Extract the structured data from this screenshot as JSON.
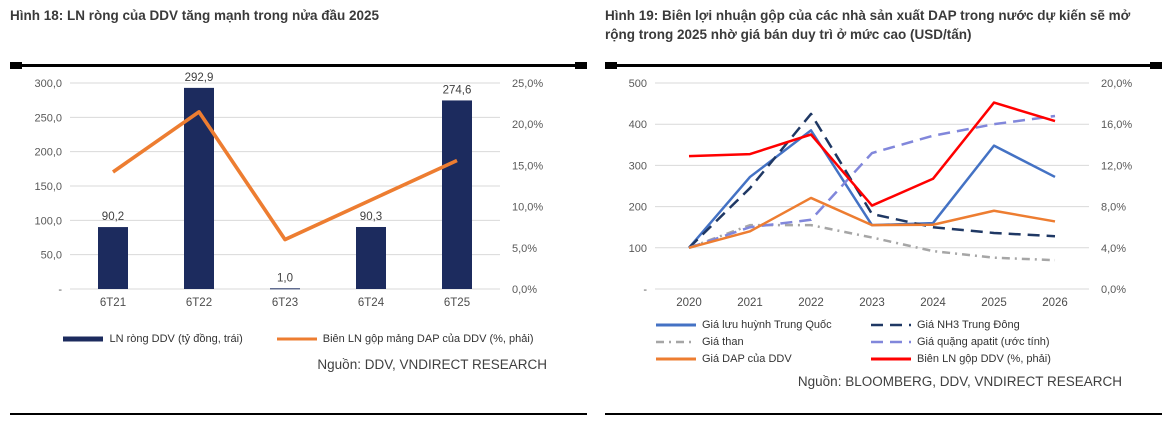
{
  "chart_data": [
    {
      "id": "fig18",
      "type": "combo_bar_line",
      "title": "Hình 18: LN ròng của DDV tăng mạnh trong nửa đầu 2025",
      "source": "Nguồn: DDV, VNDIRECT RESEARCH",
      "categories": [
        "6T21",
        "6T22",
        "6T23",
        "6T24",
        "6T25"
      ],
      "bar_series": {
        "name": "LN ròng DDV (tỷ đồng, trái)",
        "color": "#1C2B5E",
        "values": [
          90.2,
          292.9,
          1.0,
          90.3,
          274.6
        ],
        "labels": [
          "90,2",
          "292,9",
          "1,0",
          "90,3",
          "274,6"
        ]
      },
      "line_series": {
        "name": "Biên LN gộp mảng DAP của DDV (%, phải)",
        "color": "#ED7D31",
        "axis": "right",
        "values": [
          14.2,
          21.5,
          6.0,
          10.8,
          15.6
        ]
      },
      "left_axis": {
        "min": 0,
        "max": 300,
        "tick_values": [
          0,
          50,
          100,
          150,
          200,
          250,
          300
        ],
        "tick_labels": [
          "-",
          "50,0",
          "100,0",
          "150,0",
          "200,0",
          "250,0",
          "300,0"
        ]
      },
      "right_axis": {
        "min": 0,
        "max": 25,
        "tick_values": [
          0,
          5,
          10,
          15,
          20,
          25
        ],
        "tick_labels": [
          "0,0%",
          "5,0%",
          "10,0%",
          "15,0%",
          "20,0%",
          "25,0%"
        ]
      },
      "grid": true,
      "legend_position": "bottom"
    },
    {
      "id": "fig19",
      "type": "line",
      "title": "Hình 19: Biên lợi nhuận gộp của các nhà sản xuất DAP trong nước dự kiến sẽ mở rộng trong 2025 nhờ giá bán duy trì ở mức cao (USD/tấn)",
      "source": "Nguồn: BLOOMBERG, DDV, VNDIRECT RESEARCH",
      "categories": [
        "2020",
        "2021",
        "2022",
        "2023",
        "2024",
        "2025",
        "2026"
      ],
      "series": [
        {
          "name": "Giá lưu huỳnh Trung Quốc",
          "color": "#4472C4",
          "style": "solid",
          "axis": "left",
          "values": [
            100,
            272,
            385,
            155,
            160,
            348,
            272
          ]
        },
        {
          "name": "Giá NH3 Trung Đông",
          "color": "#1F3864",
          "style": "dashed",
          "axis": "left",
          "values": [
            100,
            245,
            425,
            182,
            150,
            136,
            128
          ]
        },
        {
          "name": "Giá than",
          "color": "#A6A6A6",
          "style": "dashdot",
          "axis": "left",
          "values": [
            100,
            155,
            155,
            125,
            92,
            76,
            70
          ]
        },
        {
          "name": "Giá quặng apatit (ước tính)",
          "color": "#8187DB",
          "style": "dashed",
          "axis": "left",
          "values": [
            100,
            150,
            168,
            330,
            372,
            400,
            420
          ]
        },
        {
          "name": "Giá DAP của DDV",
          "color": "#ED7D31",
          "style": "solid",
          "axis": "left",
          "values": [
            100,
            140,
            221,
            155,
            156,
            190,
            164
          ]
        },
        {
          "name": "Biên LN gộp DDV (%, phải)",
          "color": "#FF0000",
          "style": "solid",
          "axis": "right",
          "values": [
            12.9,
            13.1,
            15.0,
            8.1,
            10.7,
            18.1,
            16.3
          ]
        }
      ],
      "left_axis": {
        "min": 0,
        "max": 500,
        "tick_values": [
          0,
          100,
          200,
          300,
          400,
          500
        ],
        "tick_labels": [
          "-",
          "100",
          "200",
          "300",
          "400",
          "500"
        ]
      },
      "right_axis": {
        "min": 0,
        "max": 20,
        "tick_values": [
          0,
          4,
          8,
          12,
          16,
          20
        ],
        "tick_labels": [
          "0,0%",
          "4,0%",
          "8,0%",
          "12,0%",
          "16,0%",
          "20,0%"
        ]
      },
      "grid": true,
      "legend_position": "bottom"
    }
  ],
  "colors": {
    "gridline": "#D9D9D9",
    "axis_text": "#595959",
    "bar_label_text": "#404040",
    "rule": "#000000"
  }
}
